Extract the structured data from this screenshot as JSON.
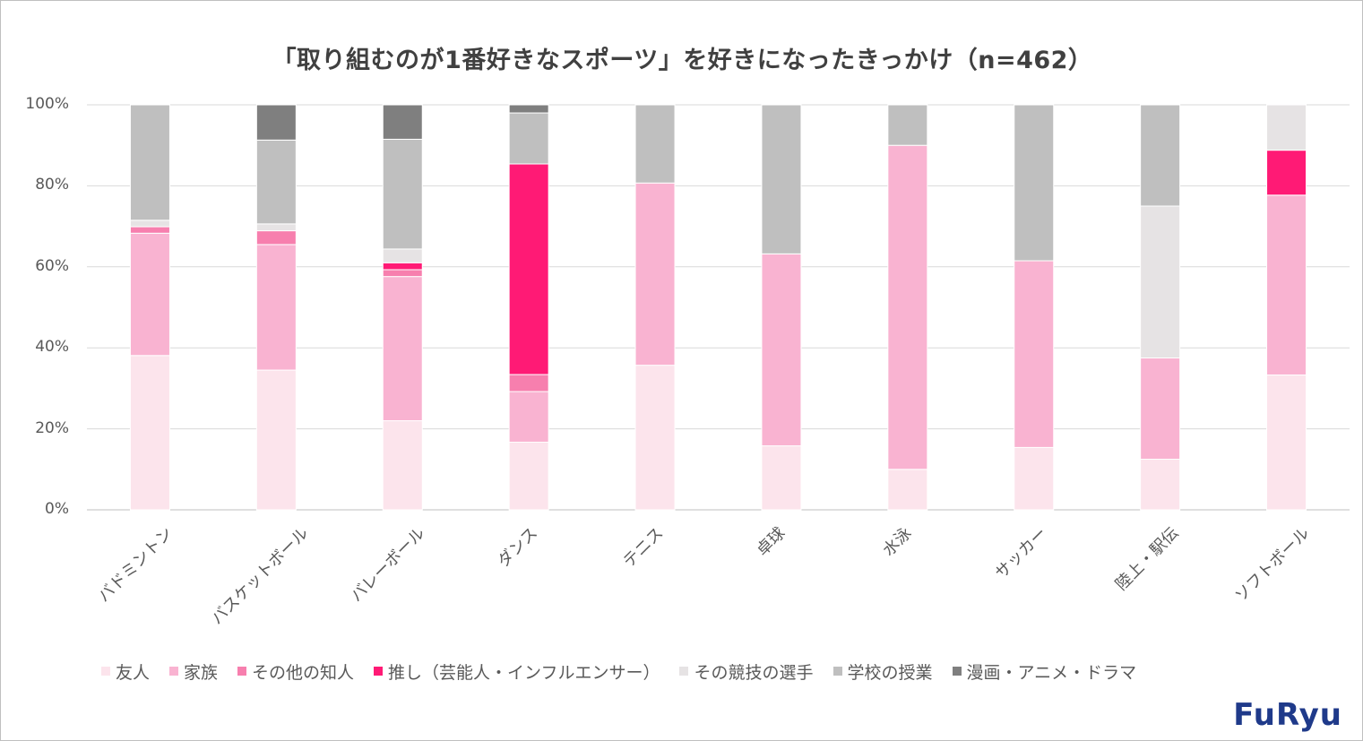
{
  "chart_data": {
    "type": "bar",
    "stacked": true,
    "title": "「取り組むのが1番好きなスポーツ」を好きになったきっかけ（n=462）",
    "categories": [
      "バドミントン",
      "バスケットボール",
      "バレーボール",
      "ダンス",
      "テニス",
      "卓球",
      "水泳",
      "サッカー",
      "陸上・駅伝",
      "ソフトボール"
    ],
    "series": [
      {
        "name": "友人",
        "color": "#fce4ec",
        "values": [
          38.1,
          34.5,
          22.0,
          16.7,
          35.7,
          15.8,
          10.0,
          15.4,
          12.5,
          33.3
        ]
      },
      {
        "name": "家族",
        "color": "#f9b3d1",
        "values": [
          30.2,
          31.0,
          35.6,
          12.5,
          45.0,
          47.4,
          80.0,
          46.1,
          25.0,
          44.4
        ]
      },
      {
        "name": "その他の知人",
        "color": "#f77fae",
        "values": [
          1.6,
          3.4,
          1.7,
          4.2,
          0,
          0,
          0,
          0,
          0,
          0
        ]
      },
      {
        "name": "推し（芸能人・インフルエンサー）",
        "color": "#ff1a75",
        "values": [
          0,
          0,
          1.7,
          52.0,
          0,
          0,
          0,
          0,
          0,
          11.1
        ]
      },
      {
        "name": "その競技の選手",
        "color": "#e6e3e4",
        "values": [
          1.6,
          1.7,
          3.4,
          0,
          0,
          0,
          0,
          0,
          37.5,
          11.2
        ]
      },
      {
        "name": "学校の授業",
        "color": "#bfbfbf",
        "values": [
          28.5,
          20.7,
          27.1,
          12.6,
          19.3,
          36.8,
          10.0,
          38.5,
          25.0,
          0
        ]
      },
      {
        "name": "漫画・アニメ・ドラマ",
        "color": "#7f7f7f",
        "values": [
          0,
          8.7,
          8.5,
          2.0,
          0,
          0,
          0,
          0,
          0,
          0
        ]
      }
    ],
    "yticks": [
      "0%",
      "20%",
      "40%",
      "60%",
      "80%",
      "100%"
    ],
    "ylim": [
      0,
      100
    ],
    "xlabel": "",
    "ylabel": "",
    "grid": true,
    "legend_position": "bottom"
  },
  "brand": {
    "logo_text": "FuRyu"
  }
}
